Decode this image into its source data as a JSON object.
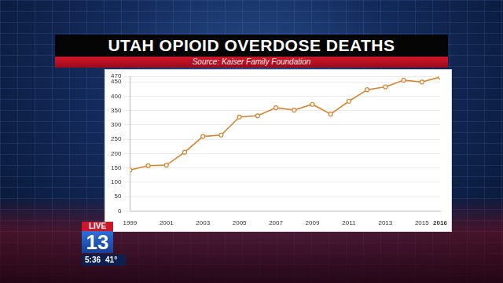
{
  "chart_data": {
    "type": "line",
    "title": "UTAH OPIOID OVERDOSE DEATHS",
    "subtitle": "Source: Kaiser Family Foundation",
    "categories": [
      "1999",
      null,
      "2001",
      null,
      "2003",
      null,
      "2005",
      null,
      "2007",
      null,
      "2009",
      null,
      "2011",
      null,
      "2013",
      null,
      "2015",
      "2016"
    ],
    "values": [
      143,
      158,
      160,
      205,
      260,
      265,
      328,
      332,
      360,
      352,
      372,
      338,
      383,
      423,
      433,
      456,
      450,
      467
    ],
    "color": "#d9822b",
    "marker": "circle",
    "line_style": "solid",
    "ylim": [
      0,
      470
    ],
    "yticks": [
      0,
      50,
      100,
      150,
      200,
      250,
      300,
      350,
      400,
      450,
      470
    ],
    "grid": true,
    "annotations": [
      "LIVE",
      "13",
      "5:36",
      "41°"
    ]
  }
}
